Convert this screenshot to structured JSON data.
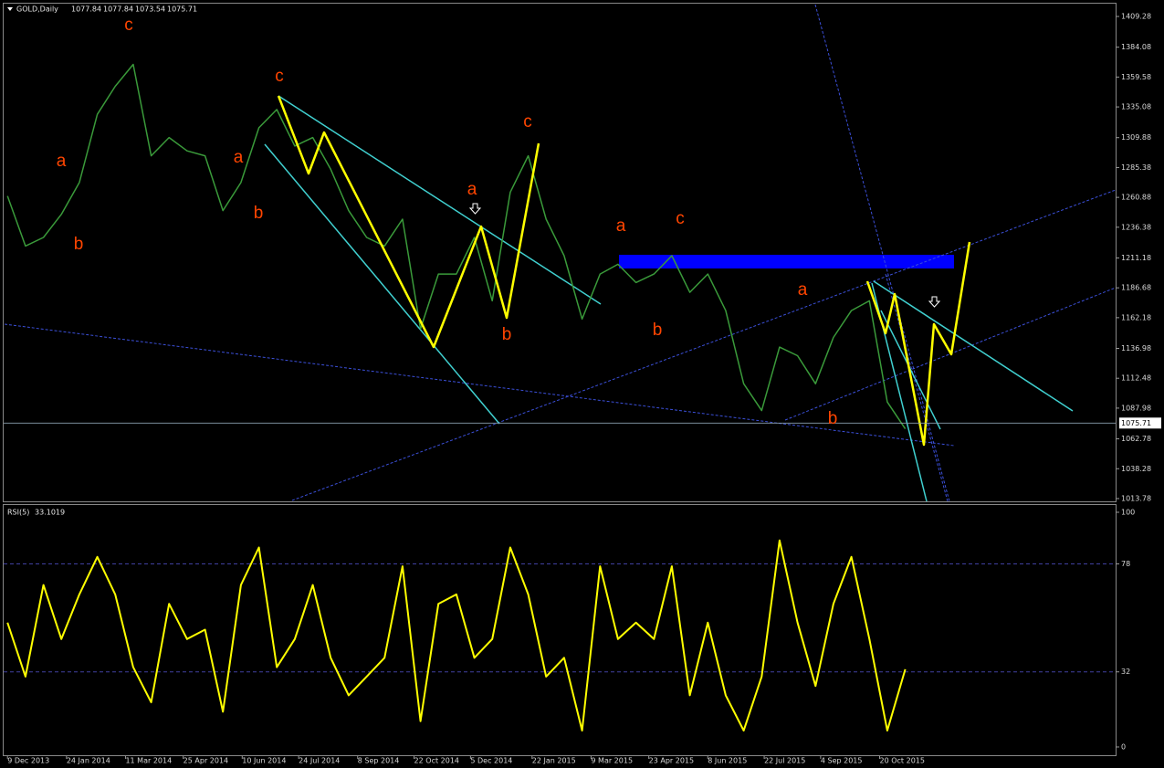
{
  "header": {
    "symbol": "GOLD,Daily",
    "open": 1077.84,
    "high": 1077.84,
    "low": 1073.54,
    "close": 1075.71
  },
  "chart_data": [
    {
      "type": "line",
      "color": "#3a9a3a",
      "x": [
        "2013-12-09",
        "2013-12-23",
        "2014-01-06",
        "2014-01-20",
        "2014-02-03",
        "2014-02-17",
        "2014-03-03",
        "2014-03-17",
        "2014-03-31",
        "2014-04-14",
        "2014-04-28",
        "2014-05-12",
        "2014-05-26",
        "2014-06-09",
        "2014-06-23",
        "2014-07-07",
        "2014-07-21",
        "2014-08-04",
        "2014-08-18",
        "2014-09-01",
        "2014-09-15",
        "2014-09-29",
        "2014-10-13",
        "2014-10-27",
        "2014-11-10",
        "2014-11-24",
        "2014-12-08",
        "2014-12-22",
        "2015-01-05",
        "2015-01-19",
        "2015-02-02",
        "2015-02-16",
        "2015-03-02",
        "2015-03-16",
        "2015-03-30",
        "2015-04-13",
        "2015-04-27",
        "2015-05-11",
        "2015-05-25",
        "2015-06-08",
        "2015-06-22",
        "2015-07-06",
        "2015-07-20",
        "2015-08-03",
        "2015-08-17",
        "2015-08-31",
        "2015-09-14",
        "2015-09-28",
        "2015-10-12",
        "2015-10-26",
        "2015-11-09"
      ],
      "values": [
        1262,
        1221,
        1228,
        1247,
        1273,
        1329,
        1352,
        1370,
        1295,
        1310,
        1299,
        1295,
        1250,
        1273,
        1318,
        1333,
        1303,
        1310,
        1284,
        1250,
        1228,
        1221,
        1243,
        1153,
        1198,
        1198,
        1228,
        1176,
        1265,
        1295,
        1243,
        1213,
        1161,
        1198,
        1206,
        1191,
        1198,
        1213,
        1183,
        1198,
        1168,
        1108,
        1086,
        1138,
        1131,
        1108,
        1146,
        1168,
        1176,
        1093,
        1071
      ],
      "xlim": [
        "2013-12-06",
        "2016-04-21"
      ],
      "ylim": [
        1011.5,
        1419.8
      ],
      "yticks": [
        1409.28,
        1384.08,
        1359.58,
        1335.08,
        1309.88,
        1285.38,
        1260.88,
        1236.38,
        1211.18,
        1186.68,
        1162.18,
        1136.98,
        1112.48,
        1087.98,
        1062.78,
        1038.28,
        1013.78
      ],
      "last_price": 1075.71,
      "annotations": [
        "c",
        "a",
        "b",
        "a",
        "b",
        "c",
        "a",
        "c",
        "b",
        "a",
        "c",
        "b",
        "a",
        "b"
      ],
      "grid": false
    },
    {
      "type": "line",
      "title": "RSI(5)",
      "last_value": 33.1019,
      "color": "#ffff00",
      "x": [
        "2013-12-09",
        "2013-12-23",
        "2014-01-06",
        "2014-01-20",
        "2014-02-03",
        "2014-02-17",
        "2014-03-03",
        "2014-03-17",
        "2014-03-31",
        "2014-04-14",
        "2014-04-28",
        "2014-05-12",
        "2014-05-26",
        "2014-06-09",
        "2014-06-23",
        "2014-07-07",
        "2014-07-21",
        "2014-08-04",
        "2014-08-18",
        "2014-09-01",
        "2014-09-15",
        "2014-09-29",
        "2014-10-13",
        "2014-10-27",
        "2014-11-10",
        "2014-11-24",
        "2014-12-08",
        "2014-12-22",
        "2015-01-05",
        "2015-01-19",
        "2015-02-02",
        "2015-02-16",
        "2015-03-02",
        "2015-03-16",
        "2015-03-30",
        "2015-04-13",
        "2015-04-27",
        "2015-05-11",
        "2015-05-25",
        "2015-06-08",
        "2015-06-22",
        "2015-07-06",
        "2015-07-20",
        "2015-08-03",
        "2015-08-17",
        "2015-08-31",
        "2015-09-14",
        "2015-09-28",
        "2015-10-12",
        "2015-10-26",
        "2015-11-09"
      ],
      "values": [
        53,
        30,
        69,
        46,
        65,
        81,
        65,
        34,
        19,
        61,
        46,
        50,
        15,
        69,
        85,
        34,
        46,
        69,
        38,
        22,
        30,
        38,
        77,
        11,
        61,
        65,
        38,
        46,
        85,
        65,
        30,
        38,
        7,
        77,
        46,
        53,
        46,
        77,
        22,
        53,
        22,
        7,
        30,
        88,
        53,
        26,
        61,
        81,
        46,
        7,
        33.1
      ],
      "xlim": [
        "2013-12-06",
        "2016-04-21"
      ],
      "ylim": [
        -3.9,
        103.1
      ],
      "yticks": [
        0,
        32,
        78,
        100
      ],
      "levels": [
        32,
        78
      ],
      "xticks": [
        {
          "value": "2013-12-09",
          "label": "9 Dec 2013"
        },
        {
          "value": "2014-01-24",
          "label": "24 Jan 2014"
        },
        {
          "value": "2014-03-11",
          "label": "11 Mar 2014"
        },
        {
          "value": "2014-04-25",
          "label": "25 Apr 2014"
        },
        {
          "value": "2014-06-10",
          "label": "10 Jun 2014"
        },
        {
          "value": "2014-07-24",
          "label": "24 Jul 2014"
        },
        {
          "value": "2014-09-08",
          "label": "8 Sep 2014"
        },
        {
          "value": "2014-10-22",
          "label": "22 Oct 2014"
        },
        {
          "value": "2014-12-05",
          "label": "5 Dec 2014"
        },
        {
          "value": "2015-01-22",
          "label": "22 Jan 2015"
        },
        {
          "value": "2015-03-09",
          "label": "9 Mar 2015"
        },
        {
          "value": "2015-04-23",
          "label": "23 Apr 2015"
        },
        {
          "value": "2015-06-08",
          "label": "8 Jun 2015"
        },
        {
          "value": "2015-07-22",
          "label": "22 Jul 2015"
        },
        {
          "value": "2015-09-04",
          "label": "4 Sep 2015"
        },
        {
          "value": "2015-10-20",
          "label": "20 Oct 2015"
        }
      ]
    }
  ]
}
